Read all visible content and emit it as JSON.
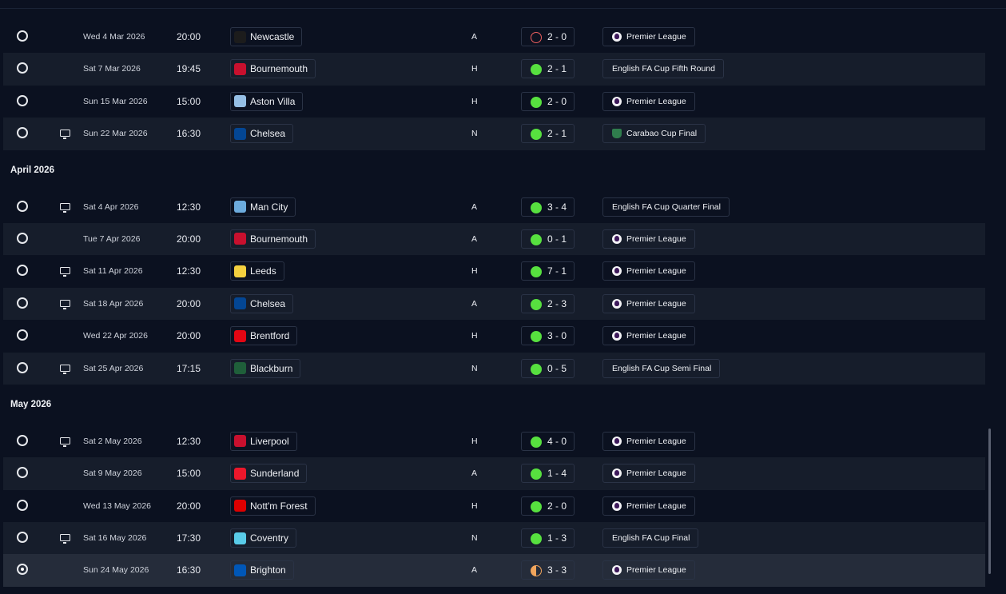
{
  "sections": [
    {
      "label": "",
      "matches": [
        {
          "selected": false,
          "tv": false,
          "date": "Wed 4 Mar 2026",
          "time": "20:00",
          "opponent": "Newcastle",
          "crest": "#1c1c1c",
          "venue": "A",
          "result": "loss",
          "score": "2 - 0",
          "competition": "Premier League",
          "comp_icon": "pl"
        },
        {
          "selected": false,
          "tv": false,
          "date": "Sat 7 Mar 2026",
          "time": "19:45",
          "opponent": "Bournemouth",
          "crest": "#c8102e",
          "venue": "H",
          "result": "win",
          "score": "2 - 1",
          "competition": "English FA Cup Fifth Round",
          "comp_icon": ""
        },
        {
          "selected": false,
          "tv": false,
          "date": "Sun 15 Mar 2026",
          "time": "15:00",
          "opponent": "Aston Villa",
          "crest": "#95bfe5",
          "venue": "H",
          "result": "win",
          "score": "2 - 0",
          "competition": "Premier League",
          "comp_icon": "pl"
        },
        {
          "selected": false,
          "tv": true,
          "date": "Sun 22 Mar 2026",
          "time": "16:30",
          "opponent": "Chelsea",
          "crest": "#034694",
          "venue": "N",
          "result": "win",
          "score": "2 - 1",
          "competition": "Carabao Cup Final",
          "comp_icon": "cc"
        }
      ]
    },
    {
      "label": "April 2026",
      "matches": [
        {
          "selected": false,
          "tv": true,
          "date": "Sat 4 Apr 2026",
          "time": "12:30",
          "opponent": "Man City",
          "crest": "#6cabdd",
          "venue": "A",
          "result": "win",
          "score": "3 - 4",
          "competition": "English FA Cup Quarter Final",
          "comp_icon": ""
        },
        {
          "selected": false,
          "tv": false,
          "date": "Tue 7 Apr 2026",
          "time": "20:00",
          "opponent": "Bournemouth",
          "crest": "#c8102e",
          "venue": "A",
          "result": "win",
          "score": "0 - 1",
          "competition": "Premier League",
          "comp_icon": "pl"
        },
        {
          "selected": false,
          "tv": true,
          "date": "Sat 11 Apr 2026",
          "time": "12:30",
          "opponent": "Leeds",
          "crest": "#f4d03f",
          "venue": "H",
          "result": "win",
          "score": "7 - 1",
          "competition": "Premier League",
          "comp_icon": "pl"
        },
        {
          "selected": false,
          "tv": true,
          "date": "Sat 18 Apr 2026",
          "time": "20:00",
          "opponent": "Chelsea",
          "crest": "#034694",
          "venue": "A",
          "result": "win",
          "score": "2 - 3",
          "competition": "Premier League",
          "comp_icon": "pl"
        },
        {
          "selected": false,
          "tv": false,
          "date": "Wed 22 Apr 2026",
          "time": "20:00",
          "opponent": "Brentford",
          "crest": "#e30613",
          "venue": "H",
          "result": "win",
          "score": "3 - 0",
          "competition": "Premier League",
          "comp_icon": "pl"
        },
        {
          "selected": false,
          "tv": true,
          "date": "Sat 25 Apr 2026",
          "time": "17:15",
          "opponent": "Blackburn",
          "crest": "#1f5f3a",
          "venue": "N",
          "result": "win",
          "score": "0 - 5",
          "competition": "English FA Cup Semi Final",
          "comp_icon": ""
        }
      ]
    },
    {
      "label": "May 2026",
      "matches": [
        {
          "selected": false,
          "tv": true,
          "date": "Sat 2 May 2026",
          "time": "12:30",
          "opponent": "Liverpool",
          "crest": "#c8102e",
          "venue": "H",
          "result": "win",
          "score": "4 - 0",
          "competition": "Premier League",
          "comp_icon": "pl"
        },
        {
          "selected": false,
          "tv": false,
          "date": "Sat 9 May 2026",
          "time": "15:00",
          "opponent": "Sunderland",
          "crest": "#eb172b",
          "venue": "A",
          "result": "win",
          "score": "1 - 4",
          "competition": "Premier League",
          "comp_icon": "pl"
        },
        {
          "selected": false,
          "tv": false,
          "date": "Wed 13 May 2026",
          "time": "20:00",
          "opponent": "Nott'm Forest",
          "crest": "#dd0000",
          "venue": "H",
          "result": "win",
          "score": "2 - 0",
          "competition": "Premier League",
          "comp_icon": "pl"
        },
        {
          "selected": false,
          "tv": true,
          "date": "Sat 16 May 2026",
          "time": "17:30",
          "opponent": "Coventry",
          "crest": "#59cbe8",
          "venue": "N",
          "result": "win",
          "score": "1 - 3",
          "competition": "English FA Cup Final",
          "comp_icon": ""
        },
        {
          "selected": true,
          "tv": false,
          "date": "Sun 24 May 2026",
          "time": "16:30",
          "opponent": "Brighton",
          "crest": "#0057b8",
          "venue": "A",
          "result": "draw",
          "score": "3 - 3",
          "competition": "Premier League",
          "comp_icon": "pl"
        }
      ]
    }
  ]
}
